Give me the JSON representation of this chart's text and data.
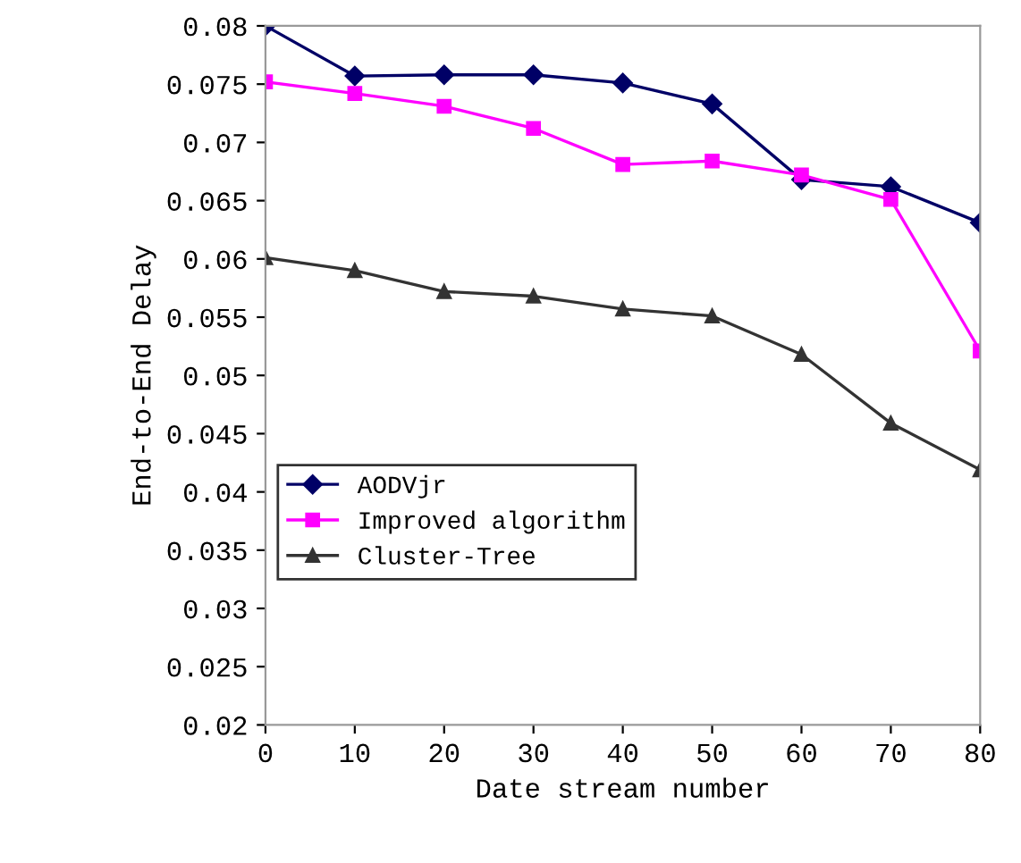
{
  "chart_data": {
    "type": "line",
    "xlabel": "Date stream number",
    "ylabel": "End-to-End Delay",
    "x": [
      0,
      10,
      20,
      30,
      40,
      50,
      60,
      70,
      80
    ],
    "series": [
      {
        "name": "AODVjr",
        "color": "#000066",
        "marker": "diamond",
        "values": [
          0.08,
          0.0757,
          0.0758,
          0.0758,
          0.0751,
          0.0733,
          0.0668,
          0.0662,
          0.0631
        ]
      },
      {
        "name": "Improved algorithm",
        "color": "#ff00ff",
        "marker": "square",
        "values": [
          0.0752,
          0.0742,
          0.0731,
          0.0712,
          0.0681,
          0.0684,
          0.0672,
          0.0651,
          0.0521
        ]
      },
      {
        "name": "Cluster-Tree",
        "color": "#333333",
        "marker": "triangle",
        "values": [
          0.0601,
          0.059,
          0.0572,
          0.0568,
          0.0557,
          0.0551,
          0.0518,
          0.0459,
          0.0419
        ]
      }
    ],
    "xlim": [
      0,
      80
    ],
    "xticks": [
      0,
      10,
      20,
      30,
      40,
      50,
      60,
      70,
      80
    ],
    "ylim": [
      0.02,
      0.08
    ],
    "yticks": [
      0.02,
      0.025,
      0.03,
      0.035,
      0.04,
      0.045,
      0.05,
      0.055,
      0.06,
      0.065,
      0.07,
      0.075,
      0.08
    ],
    "grid": false,
    "legend": "center left",
    "line_style": "solid"
  }
}
